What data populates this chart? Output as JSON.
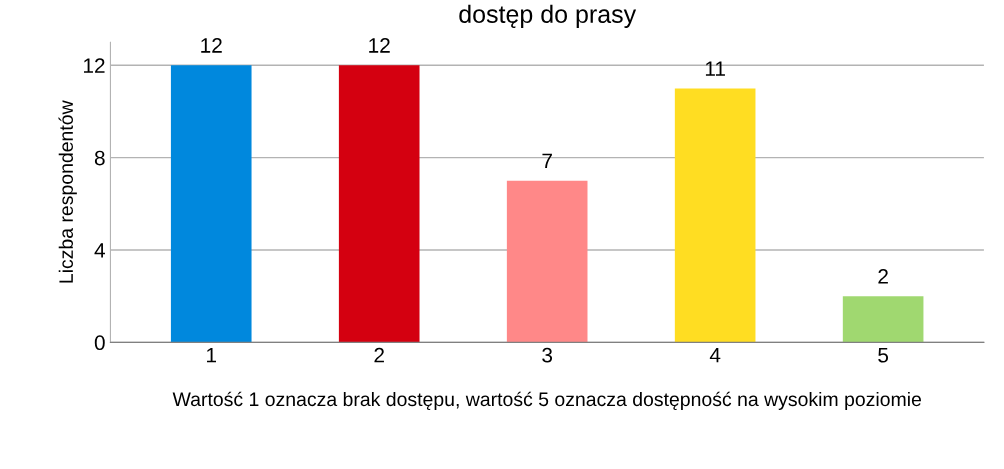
{
  "chart_data": {
    "type": "bar",
    "title": "dostęp do prasy",
    "xlabel": "Wartość 1 oznacza brak dostępu, wartość 5 oznacza dostępność na wysokim poziomie",
    "ylabel": "Liczba respondentów",
    "categories": [
      "1",
      "2",
      "3",
      "4",
      "5"
    ],
    "values": [
      12,
      12,
      7,
      11,
      2
    ],
    "colors": [
      "#0088dd",
      "#d40010",
      "#ff8888",
      "#ffdd22",
      "#a0d870"
    ],
    "ylim": [
      0,
      13
    ],
    "yticks": [
      0,
      4,
      8,
      12
    ],
    "grid": "y",
    "data_labels": true
  }
}
